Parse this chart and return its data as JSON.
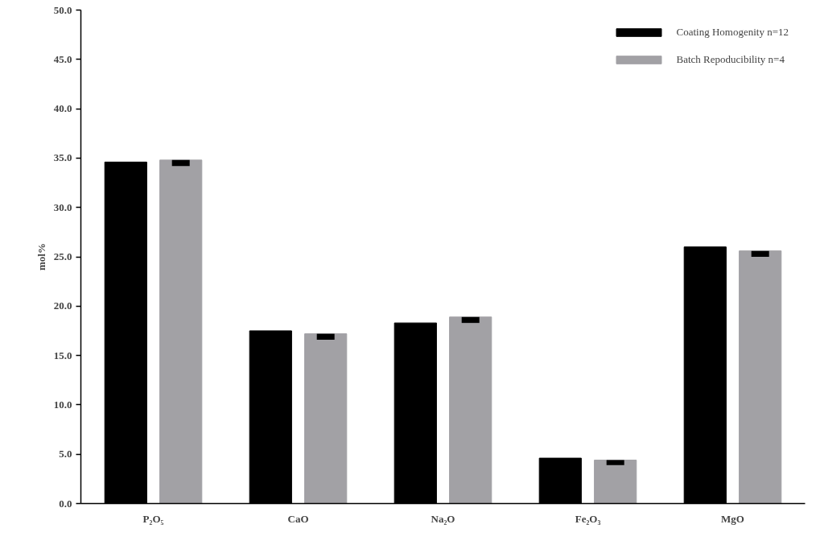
{
  "chart_data": {
    "type": "bar",
    "ylabel": "mol%",
    "categories": [
      "P₂O₅",
      "CaO",
      "Na₂O",
      "Fe₂O₃",
      "MgO"
    ],
    "series": [
      {
        "name": "Coating Homogenity n=12",
        "color": "#000000",
        "values": [
          34.6,
          17.5,
          18.3,
          4.6,
          26.0
        ]
      },
      {
        "name": "Batch Repoducibility n=4",
        "color": "#a2a1a5",
        "values": [
          34.8,
          17.2,
          18.9,
          4.4,
          25.6
        ],
        "errors": [
          [
            34.2,
            34.8
          ],
          [
            16.6,
            17.2
          ],
          [
            18.3,
            18.9
          ],
          [
            3.9,
            4.4
          ],
          [
            25.0,
            25.6
          ]
        ]
      }
    ],
    "ylim": [
      0,
      50
    ],
    "yticks": [
      {
        "value": 0,
        "label": "0.0"
      },
      {
        "value": 5,
        "label": "5.0"
      },
      {
        "value": 10,
        "label": "10.0"
      },
      {
        "value": 15,
        "label": "15.0"
      },
      {
        "value": 20,
        "label": "20.0"
      },
      {
        "value": 25,
        "label": "25.0"
      },
      {
        "value": 30,
        "label": "30.0"
      },
      {
        "value": 35,
        "label": "35.0"
      },
      {
        "value": 40,
        "label": "40.0"
      },
      {
        "value": 45,
        "label": "45.0"
      },
      {
        "value": 50,
        "label": "50.0"
      }
    ],
    "grid": false,
    "legend": "top right"
  }
}
